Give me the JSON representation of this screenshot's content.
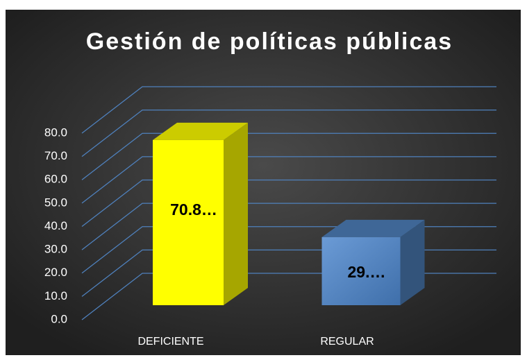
{
  "chart_data": {
    "type": "bar3d",
    "title": "Gestión de políticas públicas",
    "categories": [
      "DEFICIENTE",
      "REGULAR"
    ],
    "series": [
      {
        "name": "Gestión de políticas públicas",
        "values": [
          70.8,
          29.2
        ],
        "value_labels": [
          "70.8…",
          "29.…"
        ],
        "colors": [
          "#ffff00",
          "#4f81bd"
        ]
      }
    ],
    "ylim": [
      0,
      80
    ],
    "yticks": [
      {
        "value": 0,
        "label": "0.0"
      },
      {
        "value": 10,
        "label": "10.0"
      },
      {
        "value": 20,
        "label": "20.0"
      },
      {
        "value": 30,
        "label": "30.0"
      },
      {
        "value": 40,
        "label": "40.0"
      },
      {
        "value": 50,
        "label": "50.0"
      },
      {
        "value": 60,
        "label": "60.0"
      },
      {
        "value": 70,
        "label": "70.0"
      },
      {
        "value": 80,
        "label": "80.0"
      }
    ],
    "grid": true
  }
}
